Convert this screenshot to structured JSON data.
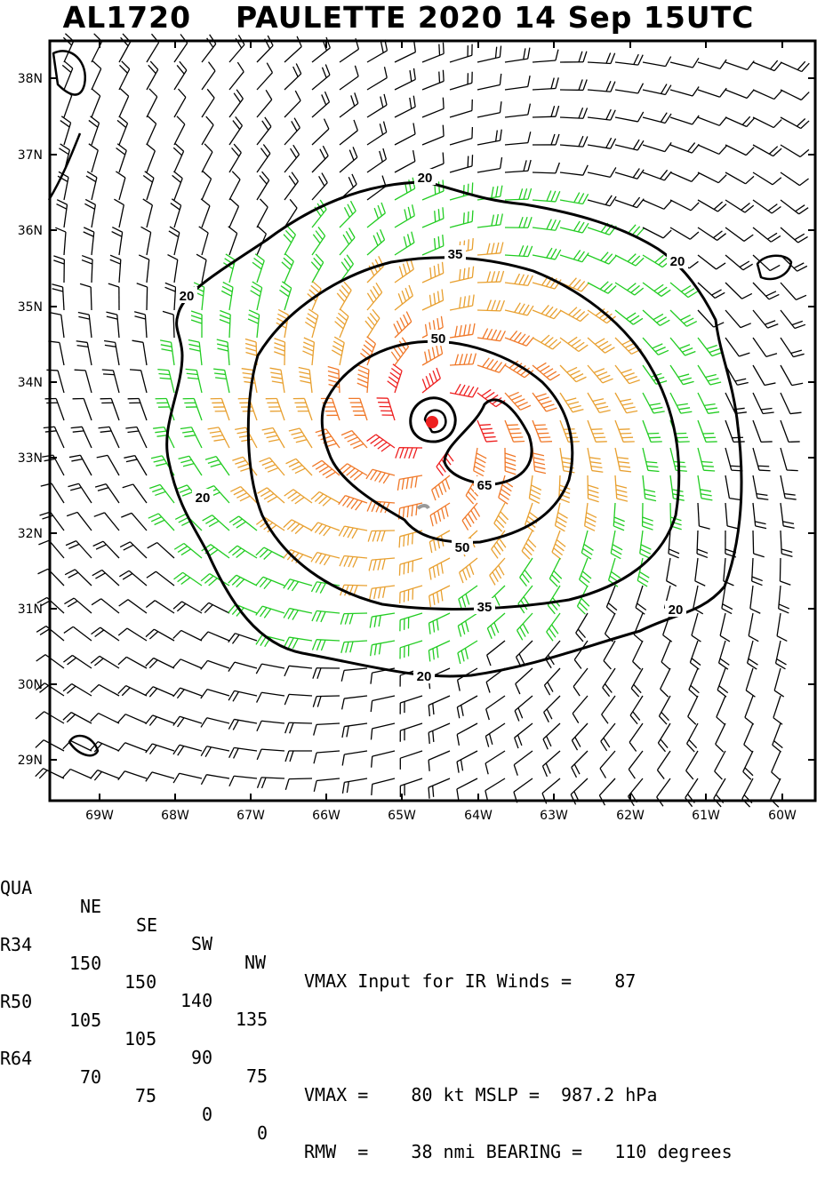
{
  "title": "AL1720    PAULETTE 2020 14 Sep 15UTC",
  "map": {
    "lat_labels": [
      "38N",
      "37N",
      "36N",
      "35N",
      "34N",
      "33N",
      "32N",
      "31N",
      "30N",
      "29N"
    ],
    "lon_labels": [
      "69W",
      "68W",
      "67W",
      "66W",
      "65W",
      "64W",
      "63W",
      "62W",
      "61W",
      "60W"
    ],
    "contour_labels": [
      "20",
      "20",
      "20",
      "20",
      "20",
      "20",
      "35",
      "35",
      "50",
      "50",
      "65"
    ],
    "colors": {
      "lt20": "#000000",
      "20to34": "#22cc22",
      "35to49": "#e8a030",
      "50to64": "#f07828",
      "ge64": "#ee2020",
      "center": "#ee2020"
    }
  },
  "table": {
    "header": [
      "QUA",
      "NE",
      "SE",
      "SW",
      "NW"
    ],
    "rows": [
      [
        "R34",
        "150",
        "150",
        "140",
        "135"
      ],
      [
        "R50",
        "105",
        "105",
        "90",
        "75"
      ],
      [
        "R64",
        "70",
        "75",
        "0",
        "0"
      ]
    ],
    "vmax_ir": "VMAX Input for IR Winds =    87",
    "vmax_line": "VMAX =    80 kt MSLP =  987.2 hPa",
    "rmw_line": "RMW  =    38 nmi BEARING =   110 degrees"
  }
}
